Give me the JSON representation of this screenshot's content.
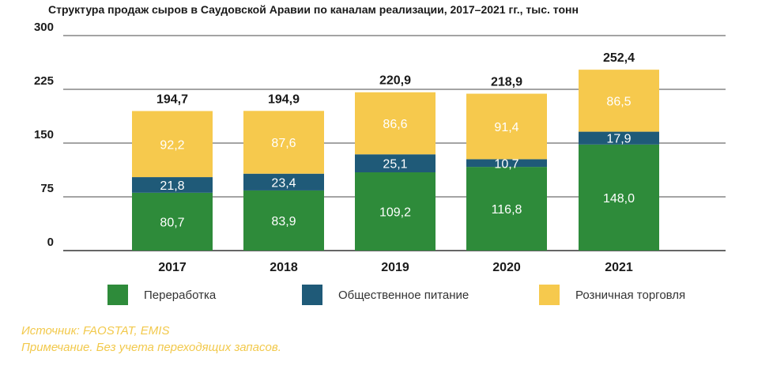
{
  "chart_data": {
    "type": "bar",
    "stacked": true,
    "title": "Структура продаж сыров в Саудовской Аравии по каналам реализации, 2017–2021 гг., тыс. тонн",
    "categories": [
      "2017",
      "2018",
      "2019",
      "2020",
      "2021"
    ],
    "series": [
      {
        "name": "Переработка",
        "color": "#2e8b3a",
        "values": [
          80.7,
          83.9,
          109.2,
          116.8,
          148.0
        ],
        "labels": [
          "80,7",
          "83,9",
          "109,2",
          "116,8",
          "148,0"
        ]
      },
      {
        "name": "Общественное питание",
        "color": "#1f5a78",
        "values": [
          21.8,
          23.4,
          25.1,
          10.7,
          17.9
        ],
        "labels": [
          "21,8",
          "23,4",
          "25,1",
          "10,7",
          "17,9"
        ]
      },
      {
        "name": "Розничная торговля",
        "color": "#f6c94d",
        "values": [
          92.2,
          87.6,
          86.6,
          91.4,
          86.5
        ],
        "labels": [
          "92,2",
          "87,6",
          "86,6",
          "91,4",
          "86,5"
        ]
      }
    ],
    "totals": [
      "194,7",
      "194,9",
      "220,9",
      "218,9",
      "252,4"
    ],
    "yticks": [
      0,
      75,
      150,
      225,
      300
    ],
    "ylim": [
      0,
      300
    ],
    "grid": true,
    "legend_position": "bottom"
  },
  "notes": {
    "source": "Источник: FAOSTAT, EMIS",
    "remark": "Примечание. Без учета переходящих запасов."
  }
}
